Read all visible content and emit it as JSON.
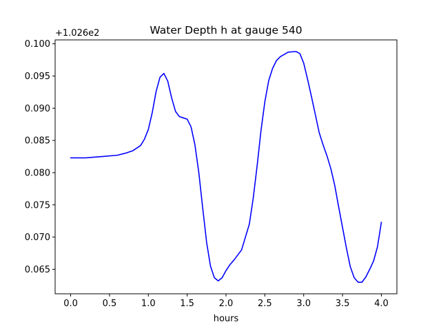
{
  "chart_data": {
    "type": "line",
    "title": "Water Depth h at gauge 540",
    "xlabel": "hours",
    "ylabel": "",
    "y_offset_label": "+1.026e2",
    "y_offset": 102.6,
    "xlim": [
      -0.2,
      4.2
    ],
    "ylim": [
      0.0612,
      0.1006
    ],
    "grid": false,
    "legend": "none",
    "x_ticks": [
      0.0,
      0.5,
      1.0,
      1.5,
      2.0,
      2.5,
      3.0,
      3.5,
      4.0
    ],
    "x_tick_labels": [
      "0.0",
      "0.5",
      "1.0",
      "1.5",
      "2.0",
      "2.5",
      "3.0",
      "3.5",
      "4.0"
    ],
    "y_ticks": [
      0.065,
      0.07,
      0.075,
      0.08,
      0.085,
      0.09,
      0.095,
      0.1
    ],
    "y_tick_labels": [
      "0.065",
      "0.070",
      "0.075",
      "0.080",
      "0.085",
      "0.090",
      "0.095",
      "0.100"
    ],
    "series": [
      {
        "color": "#0000ff",
        "x": [
          0.0,
          0.2,
          0.4,
          0.6,
          0.7,
          0.8,
          0.9,
          0.95,
          1.0,
          1.05,
          1.1,
          1.15,
          1.2,
          1.25,
          1.3,
          1.35,
          1.4,
          1.45,
          1.5,
          1.55,
          1.6,
          1.65,
          1.7,
          1.75,
          1.8,
          1.85,
          1.9,
          1.95,
          2.0,
          2.05,
          2.1,
          2.2,
          2.3,
          2.35,
          2.4,
          2.45,
          2.5,
          2.55,
          2.6,
          2.65,
          2.7,
          2.8,
          2.9,
          2.95,
          3.0,
          3.05,
          3.1,
          3.15,
          3.2,
          3.25,
          3.3,
          3.35,
          3.4,
          3.45,
          3.5,
          3.55,
          3.6,
          3.65,
          3.7,
          3.75,
          3.8,
          3.85,
          3.9,
          3.95,
          4.0
        ],
        "values": [
          0.0823,
          0.0823,
          0.0825,
          0.0827,
          0.083,
          0.0834,
          0.0842,
          0.0852,
          0.0867,
          0.0893,
          0.0926,
          0.0948,
          0.0954,
          0.0942,
          0.0916,
          0.0895,
          0.0887,
          0.0885,
          0.0883,
          0.0871,
          0.0843,
          0.08,
          0.0745,
          0.0692,
          0.0655,
          0.0637,
          0.0632,
          0.0637,
          0.0648,
          0.0657,
          0.0664,
          0.068,
          0.072,
          0.076,
          0.081,
          0.0865,
          0.091,
          0.0943,
          0.0962,
          0.0974,
          0.098,
          0.0987,
          0.0988,
          0.0985,
          0.097,
          0.0945,
          0.0918,
          0.089,
          0.0862,
          0.0843,
          0.0826,
          0.0806,
          0.078,
          0.0747,
          0.0715,
          0.0683,
          0.0654,
          0.0637,
          0.063,
          0.063,
          0.0638,
          0.065,
          0.0663,
          0.0685,
          0.0723
        ]
      }
    ]
  }
}
